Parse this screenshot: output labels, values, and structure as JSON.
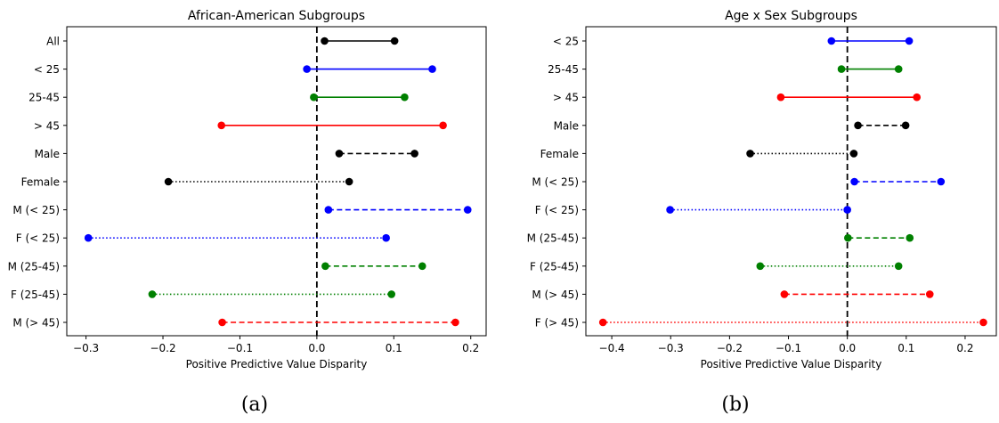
{
  "captions": [
    "(a)",
    "(b)"
  ],
  "colors": {
    "black": "#000000",
    "blue": "#0000ff",
    "green": "#008000",
    "red": "#ff0000"
  },
  "chart_data": [
    {
      "type": "dumbbell",
      "title": "African-American Subgroups",
      "xlabel": "Positive Predictive Value Disparity",
      "ylabel": "",
      "xlim": [
        -0.325,
        0.22
      ],
      "xticks": [
        -0.3,
        -0.2,
        -0.1,
        0.0,
        0.1,
        0.2
      ],
      "xtick_labels": [
        "−0.3",
        "−0.2",
        "−0.1",
        "0.0",
        "0.1",
        "0.2"
      ],
      "reference_line": {
        "x": 0.0,
        "style": "dashed",
        "color": "#000000"
      },
      "grid": false,
      "rows": [
        {
          "label": "All",
          "low": 0.01,
          "high": 0.101,
          "color": "#000000",
          "style": "solid"
        },
        {
          "label": "< 25",
          "low": -0.013,
          "high": 0.15,
          "color": "#0000ff",
          "style": "solid"
        },
        {
          "label": "25-45",
          "low": -0.004,
          "high": 0.114,
          "color": "#008000",
          "style": "solid"
        },
        {
          "label": "> 45",
          "low": -0.124,
          "high": 0.164,
          "color": "#ff0000",
          "style": "solid"
        },
        {
          "label": "Male",
          "low": 0.029,
          "high": 0.127,
          "color": "#000000",
          "style": "dashed"
        },
        {
          "label": "Female",
          "low": -0.193,
          "high": 0.042,
          "color": "#000000",
          "style": "dotted"
        },
        {
          "label": "M (< 25)",
          "low": 0.015,
          "high": 0.196,
          "color": "#0000ff",
          "style": "dashed"
        },
        {
          "label": "F (< 25)",
          "low": -0.297,
          "high": 0.09,
          "color": "#0000ff",
          "style": "dotted"
        },
        {
          "label": "M (25-45)",
          "low": 0.011,
          "high": 0.137,
          "color": "#008000",
          "style": "dashed"
        },
        {
          "label": "F (25-45)",
          "low": -0.214,
          "high": 0.097,
          "color": "#008000",
          "style": "dotted"
        },
        {
          "label": "M (> 45)",
          "low": -0.123,
          "high": 0.18,
          "color": "#ff0000",
          "style": "dashed"
        }
      ]
    },
    {
      "type": "dumbbell",
      "title": "Age x Sex Subgroups",
      "xlabel": "Positive Predictive Value Disparity",
      "ylabel": "",
      "xlim": [
        -0.444,
        0.253
      ],
      "xticks": [
        -0.4,
        -0.3,
        -0.2,
        -0.1,
        0.0,
        0.1,
        0.2
      ],
      "xtick_labels": [
        "−0.4",
        "−0.3",
        "−0.2",
        "−0.1",
        "0.0",
        "0.1",
        "0.2"
      ],
      "reference_line": {
        "x": 0.0,
        "style": "dashed",
        "color": "#000000"
      },
      "grid": false,
      "rows": [
        {
          "label": "< 25",
          "low": -0.027,
          "high": 0.105,
          "color": "#0000ff",
          "style": "solid"
        },
        {
          "label": "25-45",
          "low": -0.01,
          "high": 0.087,
          "color": "#008000",
          "style": "solid"
        },
        {
          "label": "> 45",
          "low": -0.113,
          "high": 0.118,
          "color": "#ff0000",
          "style": "solid"
        },
        {
          "label": "Male",
          "low": 0.018,
          "high": 0.099,
          "color": "#000000",
          "style": "dashed"
        },
        {
          "label": "Female",
          "low": -0.165,
          "high": 0.011,
          "color": "#000000",
          "style": "dotted"
        },
        {
          "label": "M (< 25)",
          "low": 0.012,
          "high": 0.159,
          "color": "#0000ff",
          "style": "dashed"
        },
        {
          "label": "F (< 25)",
          "low": -0.301,
          "high": 0.0,
          "color": "#0000ff",
          "style": "dotted"
        },
        {
          "label": "M (25-45)",
          "low": 0.001,
          "high": 0.106,
          "color": "#008000",
          "style": "dashed"
        },
        {
          "label": "F (25-45)",
          "low": -0.148,
          "high": 0.087,
          "color": "#008000",
          "style": "dotted"
        },
        {
          "label": "M (> 45)",
          "low": -0.107,
          "high": 0.14,
          "color": "#ff0000",
          "style": "dashed"
        },
        {
          "label": "F (> 45)",
          "low": -0.415,
          "high": 0.231,
          "color": "#ff0000",
          "style": "dotted"
        }
      ]
    }
  ]
}
